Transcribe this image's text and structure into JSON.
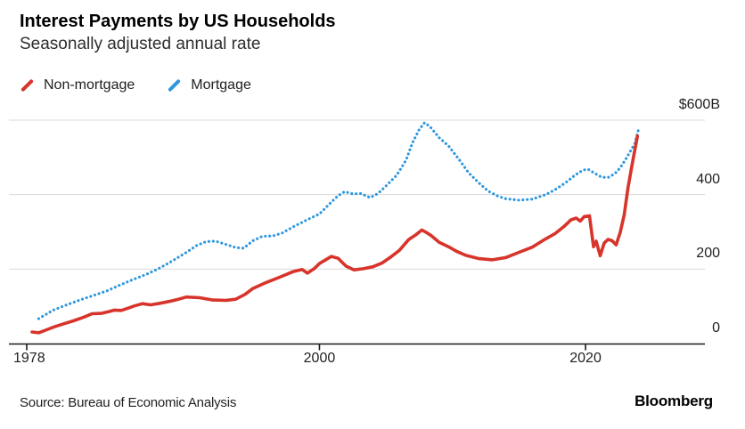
{
  "header": {
    "title": "Interest Payments by US Households",
    "subtitle": "Seasonally adjusted annual rate"
  },
  "legend": {
    "items": [
      {
        "label": "Non-mortgage",
        "color": "#d7342b"
      },
      {
        "label": "Mortgage",
        "color": "#2d97de"
      }
    ]
  },
  "footer": {
    "source": "Source: Bureau of Economic Analysis",
    "brand": "Bloomberg"
  },
  "chart_data": {
    "type": "line",
    "title": "Interest Payments by US Households",
    "subtitle": "Seasonally adjusted annual rate",
    "unit": "billions of US dollars, seasonally adjusted annual rate",
    "grid_color": "#d9d9d9",
    "axis_color": "#1a1a1a",
    "x_axis": {
      "range": [
        1978,
        2024.3
      ],
      "ticks": [
        {
          "year": 1978,
          "label": "1978"
        },
        {
          "year": 2000,
          "label": "2000"
        },
        {
          "year": 2020,
          "label": "2020"
        }
      ]
    },
    "y_axis": {
      "range": [
        0,
        600
      ],
      "side": "right",
      "grid": true,
      "ticks": [
        {
          "value": 0,
          "label": "0"
        },
        {
          "value": 200,
          "label": "200"
        },
        {
          "value": 400,
          "label": "400"
        },
        {
          "value": 600,
          "label": "$600B"
        }
      ]
    },
    "series": [
      {
        "name": "Mortgage",
        "style": "dotted",
        "color": "#2d97de",
        "points": [
          [
            1978.9,
            67
          ],
          [
            1980,
            90
          ],
          [
            1981,
            104
          ],
          [
            1982,
            117
          ],
          [
            1983,
            129
          ],
          [
            1984,
            141
          ],
          [
            1985,
            157
          ],
          [
            1986,
            172
          ],
          [
            1987,
            186
          ],
          [
            1988,
            203
          ],
          [
            1989,
            223
          ],
          [
            1990,
            245
          ],
          [
            1990.8,
            264
          ],
          [
            1991.5,
            274
          ],
          [
            1992.2,
            275
          ],
          [
            1993,
            266
          ],
          [
            1993.7,
            258
          ],
          [
            1994.3,
            256
          ],
          [
            1995,
            276
          ],
          [
            1995.7,
            288
          ],
          [
            1996.5,
            289
          ],
          [
            1997.2,
            297
          ],
          [
            1998,
            313
          ],
          [
            1999,
            331
          ],
          [
            2000,
            348
          ],
          [
            2000.7,
            373
          ],
          [
            2001.4,
            397
          ],
          [
            2001.9,
            408
          ],
          [
            2002.5,
            402
          ],
          [
            2003.1,
            403
          ],
          [
            2003.8,
            392
          ],
          [
            2004.4,
            403
          ],
          [
            2005,
            423
          ],
          [
            2005.8,
            452
          ],
          [
            2006.5,
            492
          ],
          [
            2007,
            540
          ],
          [
            2007.5,
            575
          ],
          [
            2007.9,
            593
          ],
          [
            2008.3,
            583
          ],
          [
            2009,
            553
          ],
          [
            2009.7,
            531
          ],
          [
            2010.5,
            494
          ],
          [
            2011.2,
            459
          ],
          [
            2012,
            431
          ],
          [
            2012.7,
            409
          ],
          [
            2013.4,
            396
          ],
          [
            2014,
            389
          ],
          [
            2015,
            385
          ],
          [
            2016,
            388
          ],
          [
            2017,
            400
          ],
          [
            2017.7,
            413
          ],
          [
            2018.5,
            432
          ],
          [
            2019.2,
            452
          ],
          [
            2019.8,
            466
          ],
          [
            2020.2,
            468
          ],
          [
            2020.7,
            457
          ],
          [
            2021.2,
            447
          ],
          [
            2021.7,
            446
          ],
          [
            2022.2,
            456
          ],
          [
            2022.6,
            472
          ],
          [
            2023,
            494
          ],
          [
            2023.3,
            512
          ],
          [
            2023.7,
            537
          ],
          [
            2024,
            578
          ]
        ]
      },
      {
        "name": "Non-mortgage",
        "style": "solid",
        "color": "#d7342b",
        "points": [
          [
            1978.4,
            31
          ],
          [
            1978.9,
            29
          ],
          [
            1979.5,
            37
          ],
          [
            1980,
            44
          ],
          [
            1980.7,
            52
          ],
          [
            1981.5,
            61
          ],
          [
            1982.3,
            71
          ],
          [
            1982.9,
            80
          ],
          [
            1983.6,
            81
          ],
          [
            1984.2,
            86
          ],
          [
            1984.6,
            90
          ],
          [
            1985.1,
            89
          ],
          [
            1985.6,
            95
          ],
          [
            1986.1,
            101
          ],
          [
            1986.7,
            107
          ],
          [
            1987.3,
            104
          ],
          [
            1988,
            108
          ],
          [
            1988.7,
            113
          ],
          [
            1989.4,
            119
          ],
          [
            1990,
            125
          ],
          [
            1991,
            123
          ],
          [
            1992,
            117
          ],
          [
            1993,
            116
          ],
          [
            1993.7,
            119
          ],
          [
            1994.4,
            132
          ],
          [
            1995,
            148
          ],
          [
            1996,
            164
          ],
          [
            1997,
            178
          ],
          [
            1998,
            193
          ],
          [
            1998.7,
            199
          ],
          [
            1999.1,
            189
          ],
          [
            1999.6,
            201
          ],
          [
            2000,
            215
          ],
          [
            2000.9,
            234
          ],
          [
            2001.4,
            229
          ],
          [
            2002,
            208
          ],
          [
            2002.6,
            198
          ],
          [
            2003.3,
            201
          ],
          [
            2004,
            206
          ],
          [
            2004.7,
            216
          ],
          [
            2005.3,
            231
          ],
          [
            2006,
            250
          ],
          [
            2006.7,
            279
          ],
          [
            2007.2,
            291
          ],
          [
            2007.7,
            305
          ],
          [
            2008,
            299
          ],
          [
            2008.4,
            290
          ],
          [
            2009,
            272
          ],
          [
            2009.7,
            260
          ],
          [
            2010.3,
            248
          ],
          [
            2011,
            237
          ],
          [
            2012,
            228
          ],
          [
            2013,
            225
          ],
          [
            2014,
            231
          ],
          [
            2015,
            245
          ],
          [
            2016,
            259
          ],
          [
            2017,
            281
          ],
          [
            2017.7,
            295
          ],
          [
            2018.4,
            315
          ],
          [
            2018.9,
            332
          ],
          [
            2019.3,
            337
          ],
          [
            2019.6,
            329
          ],
          [
            2019.9,
            341
          ],
          [
            2020.3,
            343
          ],
          [
            2020.6,
            260
          ],
          [
            2020.8,
            275
          ],
          [
            2021.1,
            236
          ],
          [
            2021.4,
            270
          ],
          [
            2021.7,
            280
          ],
          [
            2022,
            276
          ],
          [
            2022.3,
            265
          ],
          [
            2022.6,
            298
          ],
          [
            2022.9,
            345
          ],
          [
            2023.2,
            420
          ],
          [
            2023.6,
            500
          ],
          [
            2023.9,
            557
          ]
        ]
      }
    ]
  }
}
